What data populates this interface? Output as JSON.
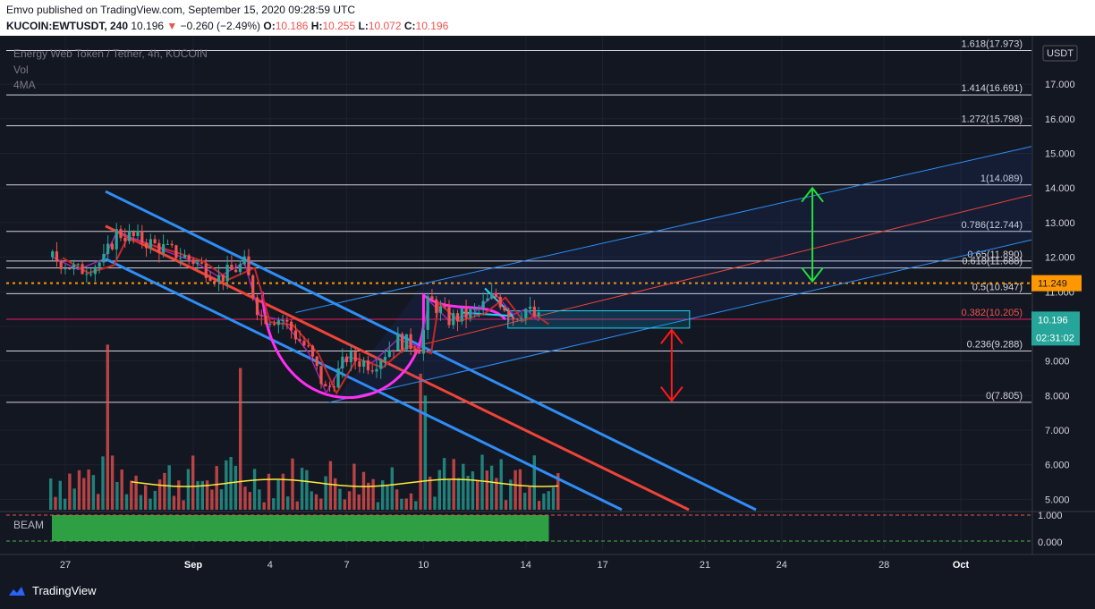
{
  "header": {
    "publish_line": "Emvo published on TradingView.com, September 15, 2020 09:28:59 UTC",
    "symbol": "KUCOIN:EWTUSDT, 240",
    "last": "10.196",
    "change": "−0.260 (−2.49%)",
    "o_label": "O:",
    "o": "10.186",
    "h_label": "H:",
    "h": "10.255",
    "l_label": "L:",
    "l": "10.072",
    "c_label": "C:",
    "c": "10.196"
  },
  "legend": {
    "title": "Energy Web Token / Tether, 4h, KUCOIN",
    "vol": "Vol",
    "ma": "4MA",
    "osc": "BEAM"
  },
  "footer": {
    "brand": "TradingView"
  },
  "colors": {
    "bg": "#131722",
    "up": "#26a69a",
    "down": "#ef5350",
    "channel_blue": "#2e8ef5",
    "red_line": "#ef4437",
    "magenta": "#ff2ef0",
    "cyan": "#22d3ee",
    "orange": "#ff9800",
    "green_arrow": "#22e03a",
    "yellow": "#ffeb3b"
  },
  "chart_data": {
    "type": "candlestick",
    "currency": "USDT",
    "y_ticks": [
      5,
      6,
      7,
      8,
      9,
      10,
      11,
      12,
      13,
      14,
      15,
      16,
      17
    ],
    "y_tick_labels": [
      "5.000",
      "6.000",
      "7.000",
      "8.000",
      "9.000",
      "10.000",
      "11.000",
      "12.000",
      "13.000",
      "14.000",
      "15.000",
      "16.000",
      "17.000"
    ],
    "ylim": [
      4.7,
      18.4
    ],
    "x_ticks": [
      {
        "day": 0,
        "label": "27"
      },
      {
        "day": 5,
        "label": "Sep"
      },
      {
        "day": 8,
        "label": "4"
      },
      {
        "day": 11,
        "label": "7"
      },
      {
        "day": 14,
        "label": "10"
      },
      {
        "day": 18,
        "label": "14"
      },
      {
        "day": 21,
        "label": "17"
      },
      {
        "day": 25,
        "label": "21"
      },
      {
        "day": 28,
        "label": "24"
      },
      {
        "day": 32,
        "label": "28"
      },
      {
        "day": 35,
        "label": "Oct"
      }
    ],
    "last_price": 10.196,
    "last_price_label": "10.196",
    "countdown": "02:31:02",
    "marked_level": 11.249,
    "marked_level_label": "11.249",
    "fib_levels": [
      {
        "value": 17.973,
        "label": "1.618(17.973)"
      },
      {
        "value": 16.691,
        "label": "1.414(16.691)"
      },
      {
        "value": 15.798,
        "label": "1.272(15.798)"
      },
      {
        "value": 14.089,
        "label": "1(14.089)"
      },
      {
        "value": 12.744,
        "label": "0.786(12.744)"
      },
      {
        "value": 11.89,
        "label": "0.65(11.890)"
      },
      {
        "value": 11.688,
        "label": "0.618(11.688)"
      },
      {
        "value": 10.947,
        "label": "0.5(10.947)"
      },
      {
        "value": 10.205,
        "label": "0.382(10.205)"
      },
      {
        "value": 9.288,
        "label": "0.236(9.288)"
      },
      {
        "value": 7.805,
        "label": "0(7.805)"
      }
    ],
    "price_path": [
      {
        "day": -0.5,
        "close": 12.0
      },
      {
        "day": 0.5,
        "close": 11.6
      },
      {
        "day": 1.5,
        "close": 11.9
      },
      {
        "day": 2.0,
        "close": 12.7
      },
      {
        "day": 3.0,
        "close": 12.5
      },
      {
        "day": 4.0,
        "close": 12.2
      },
      {
        "day": 5.0,
        "close": 11.9
      },
      {
        "day": 6.0,
        "close": 11.4
      },
      {
        "day": 7.0,
        "close": 11.8
      },
      {
        "day": 7.6,
        "close": 10.3
      },
      {
        "day": 8.5,
        "close": 10.2
      },
      {
        "day": 9.5,
        "close": 9.3
      },
      {
        "day": 10.2,
        "close": 8.1
      },
      {
        "day": 11.0,
        "close": 9.1
      },
      {
        "day": 12.0,
        "close": 8.9
      },
      {
        "day": 13.0,
        "close": 9.6
      },
      {
        "day": 13.9,
        "close": 9.4
      },
      {
        "day": 14.2,
        "close": 10.8
      },
      {
        "day": 15.0,
        "close": 10.2
      },
      {
        "day": 16.0,
        "close": 10.4
      },
      {
        "day": 16.8,
        "close": 10.9
      },
      {
        "day": 17.5,
        "close": 10.3
      },
      {
        "day": 18.0,
        "close": 10.5
      },
      {
        "day": 18.5,
        "close": 10.2
      }
    ],
    "volume_ma_level": 0.5,
    "osc_levels": [
      {
        "value": 1.0,
        "label": "1.000"
      },
      {
        "value": 0.0,
        "label": "0.000"
      }
    ]
  }
}
